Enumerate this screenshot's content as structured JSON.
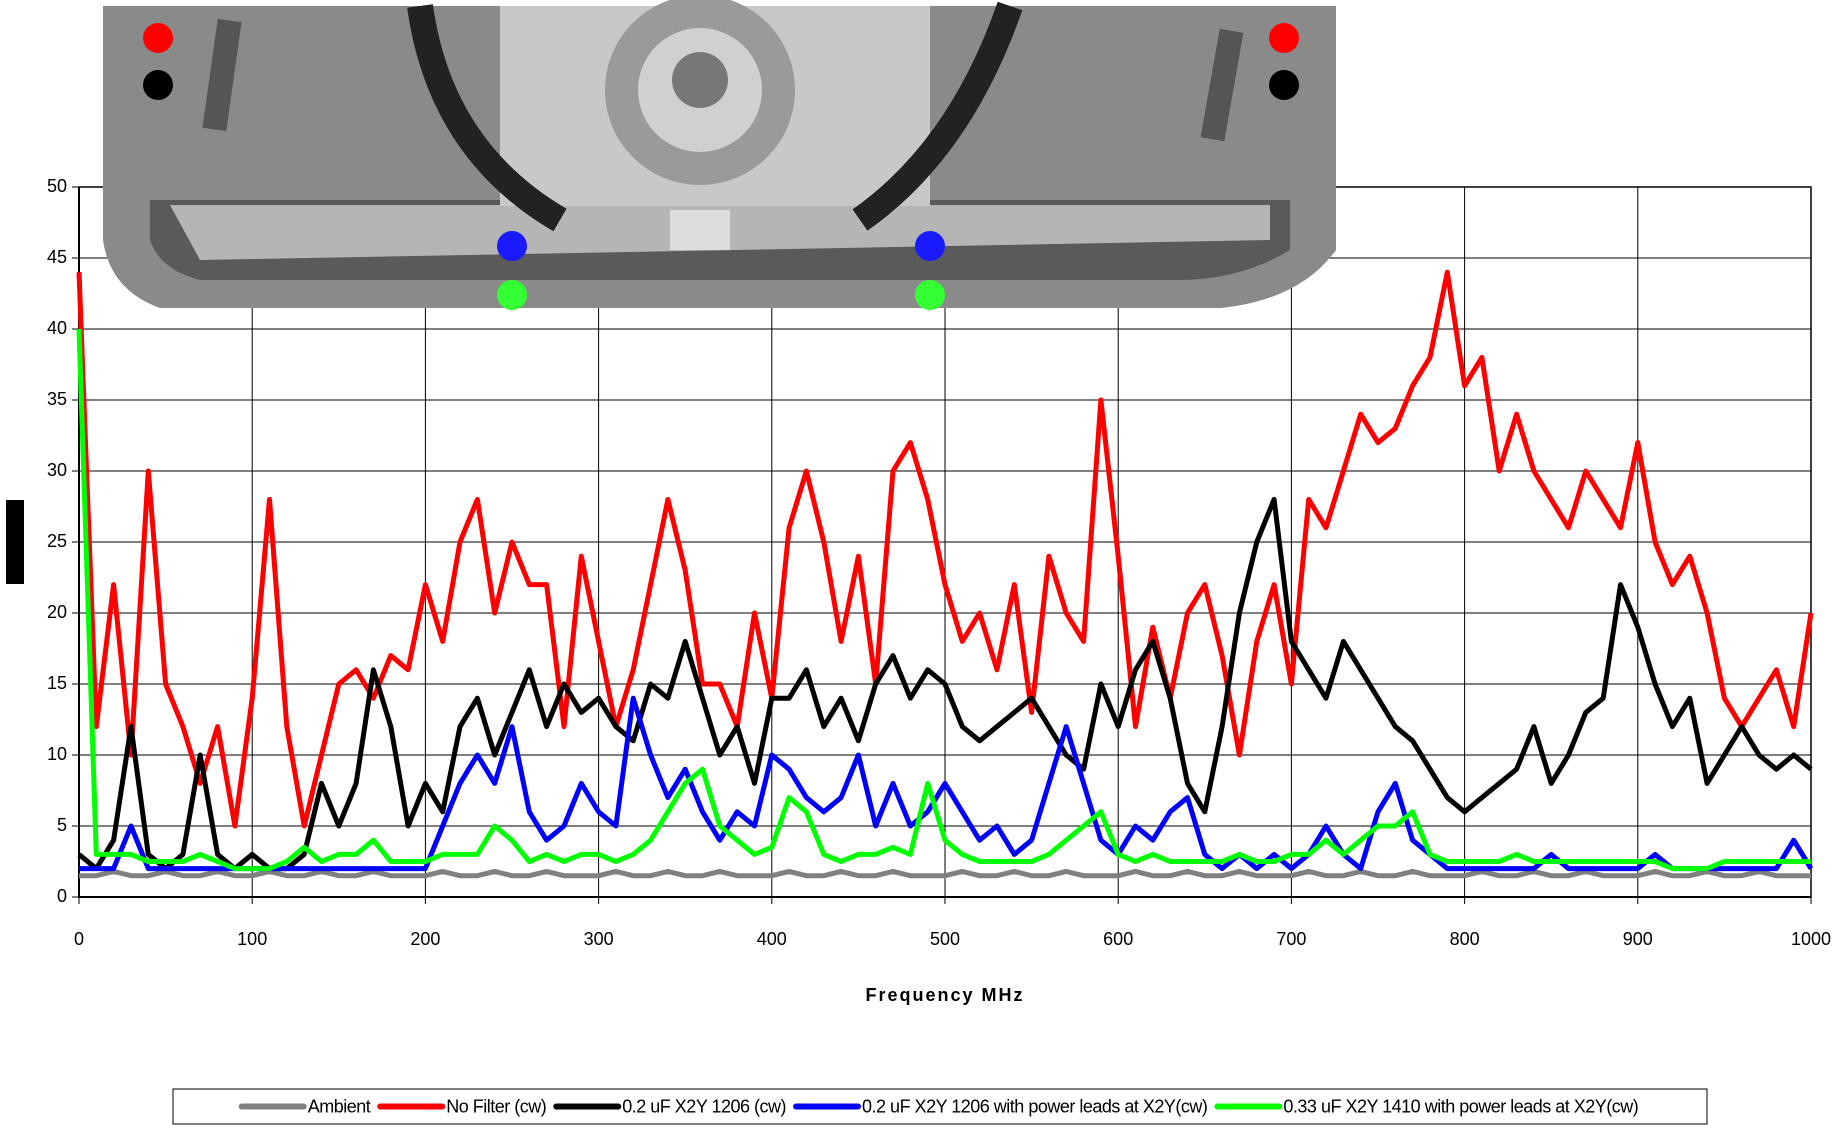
{
  "chart_data": {
    "type": "line",
    "x_label": "Frequency MHz",
    "xlim": [
      0,
      1000
    ],
    "xticks": [
      0,
      100,
      200,
      300,
      400,
      500,
      600,
      700,
      800,
      900,
      1000
    ],
    "ylim": [
      0,
      50
    ],
    "yticks": [
      0,
      5,
      10,
      15,
      20,
      25,
      30,
      35,
      40,
      45,
      50
    ],
    "grid": true,
    "legend": "bottom",
    "x": [
      0,
      10,
      20,
      30,
      40,
      50,
      60,
      70,
      80,
      90,
      100,
      110,
      120,
      130,
      140,
      150,
      160,
      170,
      180,
      190,
      200,
      210,
      220,
      230,
      240,
      250,
      260,
      270,
      280,
      290,
      300,
      310,
      320,
      330,
      340,
      350,
      360,
      370,
      380,
      390,
      400,
      410,
      420,
      430,
      440,
      450,
      460,
      470,
      480,
      490,
      500,
      510,
      520,
      530,
      540,
      550,
      560,
      570,
      580,
      590,
      600,
      610,
      620,
      630,
      640,
      650,
      660,
      670,
      680,
      690,
      700,
      710,
      720,
      730,
      740,
      750,
      760,
      770,
      780,
      790,
      800,
      810,
      820,
      830,
      840,
      850,
      860,
      870,
      880,
      890,
      900,
      910,
      920,
      930,
      940,
      950,
      960,
      970,
      980,
      990,
      1000
    ],
    "series": [
      {
        "name": "Ambient",
        "color": "#808080",
        "values": [
          1.5,
          1.5,
          1.8,
          1.5,
          1.5,
          1.8,
          1.5,
          1.5,
          1.8,
          1.5,
          1.5,
          1.8,
          1.5,
          1.5,
          1.8,
          1.5,
          1.5,
          1.8,
          1.5,
          1.5,
          1.5,
          1.8,
          1.5,
          1.5,
          1.8,
          1.5,
          1.5,
          1.8,
          1.5,
          1.5,
          1.5,
          1.8,
          1.5,
          1.5,
          1.8,
          1.5,
          1.5,
          1.8,
          1.5,
          1.5,
          1.5,
          1.8,
          1.5,
          1.5,
          1.8,
          1.5,
          1.5,
          1.8,
          1.5,
          1.5,
          1.5,
          1.8,
          1.5,
          1.5,
          1.8,
          1.5,
          1.5,
          1.8,
          1.5,
          1.5,
          1.5,
          1.8,
          1.5,
          1.5,
          1.8,
          1.5,
          1.5,
          1.8,
          1.5,
          1.5,
          1.5,
          1.8,
          1.5,
          1.5,
          1.8,
          1.5,
          1.5,
          1.8,
          1.5,
          1.5,
          1.5,
          1.8,
          1.5,
          1.5,
          1.8,
          1.5,
          1.5,
          1.8,
          1.5,
          1.5,
          1.5,
          1.8,
          1.5,
          1.5,
          1.8,
          1.5,
          1.5,
          1.8,
          1.5,
          1.5,
          1.5
        ]
      },
      {
        "name": "No Filter (cw)",
        "color": "#ff0000",
        "values": [
          44,
          12,
          22,
          10,
          30,
          15,
          12,
          8,
          12,
          5,
          14,
          28,
          12,
          5,
          10,
          15,
          16,
          14,
          17,
          16,
          22,
          18,
          25,
          28,
          20,
          25,
          22,
          22,
          12,
          24,
          18,
          12,
          16,
          22,
          28,
          23,
          15,
          15,
          12,
          20,
          14,
          26,
          30,
          25,
          18,
          24,
          15,
          30,
          32,
          28,
          22,
          18,
          20,
          16,
          22,
          13,
          24,
          20,
          18,
          35,
          24,
          12,
          19,
          14,
          20,
          22,
          17,
          10,
          18,
          22,
          15,
          28,
          26,
          30,
          34,
          32,
          33,
          36,
          38,
          44,
          36,
          38,
          30,
          34,
          30,
          28,
          26,
          30,
          28,
          26,
          32,
          25,
          22,
          24,
          20,
          14,
          12,
          14,
          16,
          12,
          20
        ]
      },
      {
        "name": "0.2 uF X2Y 1206 (cw)",
        "color": "#000000",
        "values": [
          3,
          2,
          4,
          12,
          3,
          2,
          3,
          10,
          3,
          2,
          3,
          2,
          2,
          3,
          8,
          5,
          8,
          16,
          12,
          5,
          8,
          6,
          12,
          14,
          10,
          13,
          16,
          12,
          15,
          13,
          14,
          12,
          11,
          15,
          14,
          18,
          14,
          10,
          12,
          8,
          14,
          14,
          16,
          12,
          14,
          11,
          15,
          17,
          14,
          16,
          15,
          12,
          11,
          12,
          13,
          14,
          12,
          10,
          9,
          15,
          12,
          16,
          18,
          14,
          8,
          6,
          12,
          20,
          25,
          28,
          18,
          16,
          14,
          18,
          16,
          14,
          12,
          11,
          9,
          7,
          6,
          7,
          8,
          9,
          12,
          8,
          10,
          13,
          14,
          22,
          19,
          15,
          12,
          14,
          8,
          10,
          12,
          10,
          9,
          10,
          9
        ]
      },
      {
        "name": "0.2 uF X2Y 1206 with power leads at X2Y(cw)",
        "color": "#0000ff",
        "values": [
          2,
          2,
          2,
          5,
          2,
          2,
          2,
          2,
          2,
          2,
          2,
          2,
          2,
          2,
          2,
          2,
          2,
          2,
          2,
          2,
          2,
          5,
          8,
          10,
          8,
          12,
          6,
          4,
          5,
          8,
          6,
          5,
          14,
          10,
          7,
          9,
          6,
          4,
          6,
          5,
          10,
          9,
          7,
          6,
          7,
          10,
          5,
          8,
          5,
          6,
          8,
          6,
          4,
          5,
          3,
          4,
          8,
          12,
          8,
          4,
          3,
          5,
          4,
          6,
          7,
          3,
          2,
          3,
          2,
          3,
          2,
          3,
          5,
          3,
          2,
          6,
          8,
          4,
          3,
          2,
          2,
          2,
          2,
          2,
          2,
          3,
          2,
          2,
          2,
          2,
          2,
          3,
          2,
          2,
          2,
          2,
          2,
          2,
          2,
          4,
          2
        ]
      },
      {
        "name": "0.33 uF X2Y 1410 with power leads at X2Y(cw)",
        "color": "#00ff00",
        "values": [
          40,
          3,
          3,
          3,
          2.5,
          2.5,
          2.5,
          3,
          2.5,
          2,
          2,
          2,
          2.5,
          3.5,
          2.5,
          3,
          3,
          4,
          2.5,
          2.5,
          2.5,
          3,
          3,
          3,
          5,
          4,
          2.5,
          3,
          2.5,
          3,
          3,
          2.5,
          3,
          4,
          6,
          8,
          9,
          5,
          4,
          3,
          3.5,
          7,
          6,
          3,
          2.5,
          3,
          3,
          3.5,
          3,
          8,
          4,
          3,
          2.5,
          2.5,
          2.5,
          2.5,
          3,
          4,
          5,
          6,
          3,
          2.5,
          3,
          2.5,
          2.5,
          2.5,
          2.5,
          3,
          2.5,
          2.5,
          3,
          3,
          4,
          3,
          4,
          5,
          5,
          6,
          3,
          2.5,
          2.5,
          2.5,
          2.5,
          3,
          2.5,
          2.5,
          2.5,
          2.5,
          2.5,
          2.5,
          2.5,
          2.5,
          2,
          2,
          2,
          2.5,
          2.5,
          2.5,
          2.5,
          2.5,
          2.5
        ]
      }
    ]
  }
}
